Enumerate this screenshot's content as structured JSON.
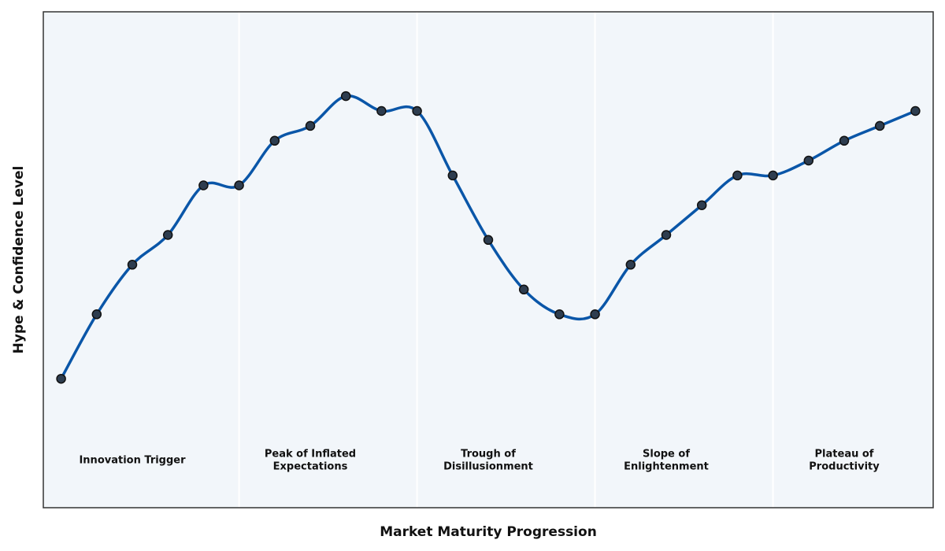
{
  "chart_data": {
    "type": "line",
    "title": "",
    "xlabel": "Market Maturity Progression",
    "ylabel": "Hype & Confidence Level",
    "x_ticks_visible": false,
    "y_ticks_visible": false,
    "xlim": [
      -0.5,
      24.5
    ],
    "ylim": [
      0,
      100
    ],
    "grid": false,
    "legend": "none",
    "colors": {
      "line": "#0a56a8",
      "marker_fill": "#2e3d4f",
      "marker_edge": "#111111",
      "plot_background": "#f2f6fa",
      "phase_divider": "#ffffff",
      "frame": "#333333"
    },
    "series": [
      {
        "x": [
          0,
          1,
          2,
          3,
          4,
          5,
          6,
          7,
          8,
          9,
          10,
          11,
          12,
          13,
          14,
          15,
          16,
          17,
          18,
          19,
          20,
          21,
          22,
          23,
          24
        ],
        "values": [
          26,
          39,
          49,
          55,
          65,
          65,
          74,
          77,
          83,
          80,
          80,
          67,
          54,
          44,
          39,
          39,
          49,
          55,
          61,
          67,
          67,
          70,
          74,
          77,
          80
        ]
      }
    ],
    "phases": [
      {
        "label": "Innovation Trigger",
        "start": -0.5,
        "end": 5,
        "center": 2
      },
      {
        "label": "Peak of Inflated\nExpectations",
        "start": 5,
        "end": 10,
        "center": 7
      },
      {
        "label": "Trough of\nDisillusionment",
        "start": 10,
        "end": 15,
        "center": 12
      },
      {
        "label": "Slope of\nEnlightenment",
        "start": 15,
        "end": 20,
        "center": 17
      },
      {
        "label": "Plateau of\nProductivity",
        "start": 20,
        "end": 24.5,
        "center": 22
      }
    ],
    "phase_label_level": 9
  }
}
